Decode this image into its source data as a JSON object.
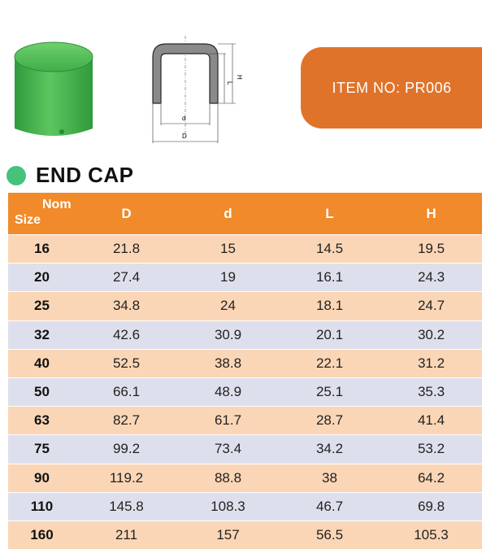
{
  "badge": {
    "label": "ITEM  NO: PR006"
  },
  "heading": {
    "title": "END CAP"
  },
  "diagram": {
    "labels": {
      "d": "d",
      "D": "D",
      "L": "L",
      "H": "H"
    }
  },
  "table": {
    "header": {
      "nom": "Nom",
      "size": "Size",
      "cols": [
        "D",
        "d",
        "L",
        "H"
      ]
    },
    "rows": [
      [
        "16",
        "21.8",
        "15",
        "14.5",
        "19.5"
      ],
      [
        "20",
        "27.4",
        "19",
        "16.1",
        "24.3"
      ],
      [
        "25",
        "34.8",
        "24",
        "18.1",
        "24.7"
      ],
      [
        "32",
        "42.6",
        "30.9",
        "20.1",
        "30.2"
      ],
      [
        "40",
        "52.5",
        "38.8",
        "22.1",
        "31.2"
      ],
      [
        "50",
        "66.1",
        "48.9",
        "25.1",
        "35.3"
      ],
      [
        "63",
        "82.7",
        "61.7",
        "28.7",
        "41.4"
      ],
      [
        "75",
        "99.2",
        "73.4",
        "34.2",
        "53.2"
      ],
      [
        "90",
        "119.2",
        "88.8",
        "38",
        "64.2"
      ],
      [
        "110",
        "145.8",
        "108.3",
        "46.7",
        "69.8"
      ],
      [
        "160",
        "211",
        "157",
        "56.5",
        "105.3"
      ]
    ]
  },
  "colors": {
    "accent_orange": "#f08a2a",
    "badge_orange": "#e0732a",
    "dot_green": "#46c27d",
    "product_green": "#3fae49"
  }
}
